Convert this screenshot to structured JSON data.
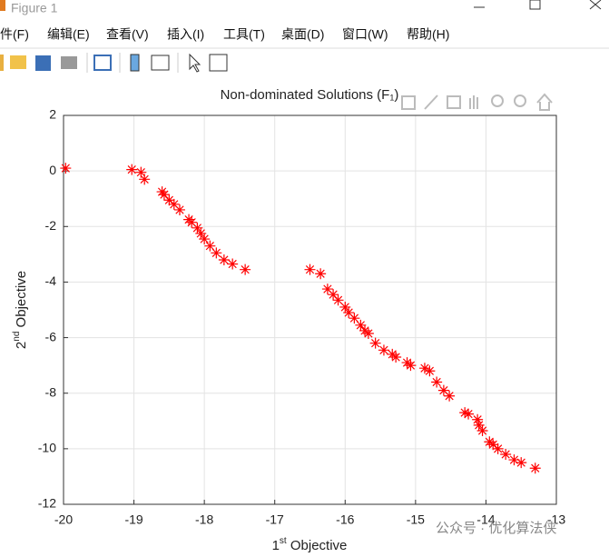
{
  "window": {
    "title": "Figure 1"
  },
  "menu": [
    "文件(F)",
    "编辑(E)",
    "查看(V)",
    "插入(I)",
    "工具(T)",
    "桌面(D)",
    "窗口(W)",
    "帮助(H)"
  ],
  "watermark": "公众号 · 优化算法侠",
  "chart_data": {
    "type": "scatter",
    "title": "Non-dominated Solutions (F₁)",
    "xlabel": [
      "1",
      "st",
      " Objective"
    ],
    "ylabel": [
      "2",
      "nd",
      " Objective"
    ],
    "xlim": [
      -20,
      -13
    ],
    "xticks": [
      -20,
      -19,
      -18,
      -17,
      -16,
      -15,
      -14,
      -13
    ],
    "ylim": [
      -12,
      2
    ],
    "yticks": [
      -12,
      -10,
      -8,
      -6,
      -4,
      -2,
      0,
      2
    ],
    "grid": true,
    "series": [
      {
        "color": "#ff0000",
        "marker": "*",
        "x": [
          -19.97,
          -19.03,
          -18.9,
          -18.85,
          -18.6,
          -18.57,
          -18.5,
          -18.43,
          -18.35,
          -18.22,
          -18.18,
          -18.1,
          -18.05,
          -18.0,
          -17.92,
          -17.83,
          -17.72,
          -17.6,
          -17.42,
          -16.5,
          -16.35,
          -16.25,
          -16.17,
          -16.1,
          -16.0,
          -15.95,
          -15.87,
          -15.78,
          -15.72,
          -15.67,
          -15.57,
          -15.45,
          -15.33,
          -15.28,
          -15.12,
          -15.07,
          -14.87,
          -14.8,
          -14.7,
          -14.6,
          -14.52,
          -14.3,
          -14.25,
          -14.12,
          -14.1,
          -14.05,
          -13.95,
          -13.9,
          -13.83,
          -13.72,
          -13.6,
          -13.5,
          -13.3
        ],
        "values": [
          0.1,
          0.05,
          -0.05,
          -0.3,
          -0.75,
          -0.85,
          -1.05,
          -1.2,
          -1.4,
          -1.75,
          -1.85,
          -2.05,
          -2.25,
          -2.45,
          -2.7,
          -2.95,
          -3.2,
          -3.35,
          -3.55,
          -3.55,
          -3.7,
          -4.25,
          -4.45,
          -4.65,
          -4.9,
          -5.1,
          -5.3,
          -5.55,
          -5.75,
          -5.85,
          -6.2,
          -6.45,
          -6.6,
          -6.7,
          -6.9,
          -7.0,
          -7.1,
          -7.2,
          -7.6,
          -7.9,
          -8.1,
          -8.7,
          -8.75,
          -8.95,
          -9.15,
          -9.35,
          -9.75,
          -9.85,
          -10.0,
          -10.2,
          -10.4,
          -10.5,
          -10.7
        ]
      }
    ]
  }
}
